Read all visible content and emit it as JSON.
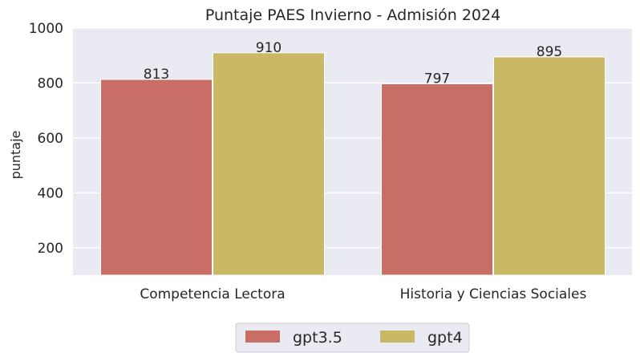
{
  "chart_data": {
    "type": "bar",
    "title": "Puntaje PAES Invierno - Admisión 2024",
    "xlabel": "",
    "ylabel": "puntaje",
    "categories": [
      "Competencia Lectora",
      "Historia y Ciencias Sociales"
    ],
    "series": [
      {
        "name": "gpt3.5",
        "values": [
          813,
          797
        ],
        "color": "#c96e66"
      },
      {
        "name": "gpt4",
        "values": [
          910,
          895
        ],
        "color": "#c9b866"
      }
    ],
    "ylim": [
      100,
      1000
    ],
    "yticks": [
      200,
      400,
      600,
      800,
      1000
    ],
    "ytick_labels": [
      "200",
      "400",
      "600",
      "800",
      "1000"
    ],
    "data_labels": [
      [
        "813",
        "797"
      ],
      [
        "910",
        "895"
      ]
    ],
    "grid": true,
    "legend_position": "bottom-center"
  },
  "colors": {
    "plot_background": "#eaeaf2",
    "grid": "#ffffff",
    "text": "#262626"
  }
}
